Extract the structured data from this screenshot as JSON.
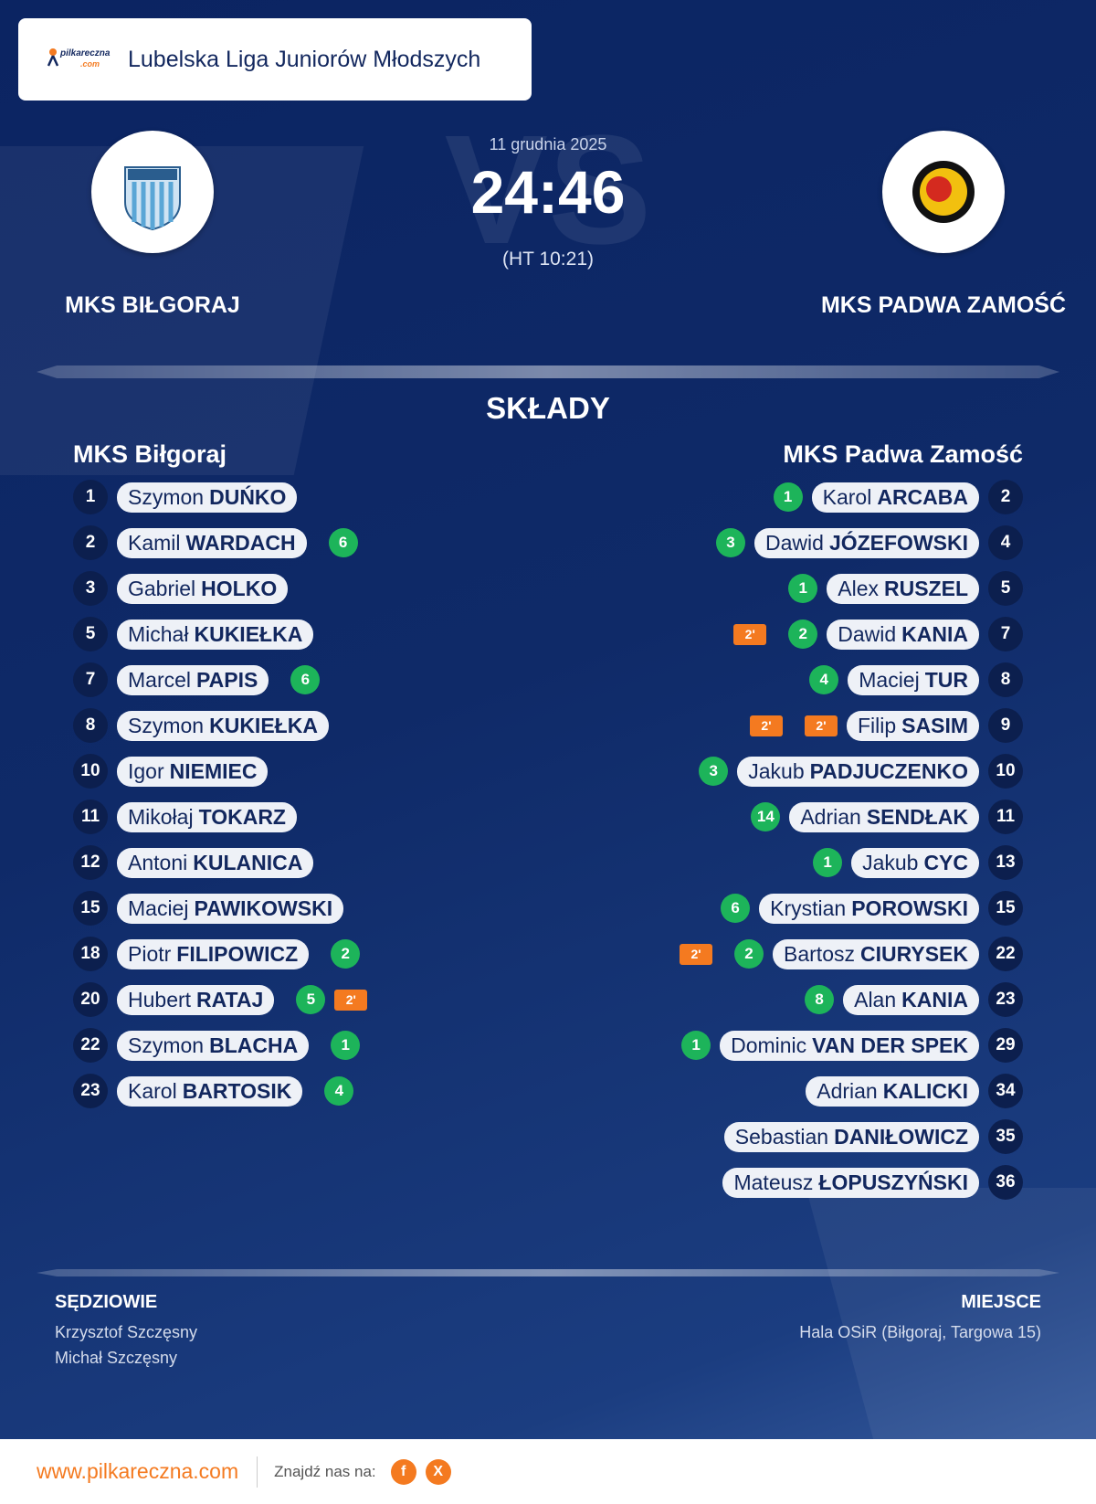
{
  "header": {
    "logo": "pilkareczna",
    "logo_sub": ".com",
    "league": "Lubelska Liga Juniorów Młodszych"
  },
  "match": {
    "watermark": "VS",
    "date": "11 grudnia 2025",
    "score": "24:46",
    "halftime": "(HT 10:21)",
    "home": "MKS BIŁGORAJ",
    "away": "MKS PADWA ZAMOŚĆ"
  },
  "lineups": {
    "title": "SKŁADY",
    "home": {
      "name": "MKS Biłgoraj",
      "players": [
        {
          "number": 1,
          "first": "Szymon",
          "last": "DUŃKO",
          "goals": null,
          "penalties": []
        },
        {
          "number": 2,
          "first": "Kamil",
          "last": "WARDACH",
          "goals": 6,
          "penalties": []
        },
        {
          "number": 3,
          "first": "Gabriel",
          "last": "HOLKO",
          "goals": null,
          "penalties": []
        },
        {
          "number": 5,
          "first": "Michał",
          "last": "KUKIEŁKA",
          "goals": null,
          "penalties": []
        },
        {
          "number": 7,
          "first": "Marcel",
          "last": "PAPIS",
          "goals": 6,
          "penalties": []
        },
        {
          "number": 8,
          "first": "Szymon",
          "last": "KUKIEŁKA",
          "goals": null,
          "penalties": []
        },
        {
          "number": 10,
          "first": "Igor",
          "last": "NIEMIEC",
          "goals": null,
          "penalties": []
        },
        {
          "number": 11,
          "first": "Mikołaj",
          "last": "TOKARZ",
          "goals": null,
          "penalties": []
        },
        {
          "number": 12,
          "first": "Antoni",
          "last": "KULANICA",
          "goals": null,
          "penalties": []
        },
        {
          "number": 15,
          "first": "Maciej",
          "last": "PAWIKOWSKI",
          "goals": null,
          "penalties": []
        },
        {
          "number": 18,
          "first": "Piotr",
          "last": "FILIPOWICZ",
          "goals": 2,
          "penalties": []
        },
        {
          "number": 20,
          "first": "Hubert",
          "last": "RATAJ",
          "goals": 5,
          "penalties": [
            "2'"
          ]
        },
        {
          "number": 22,
          "first": "Szymon",
          "last": "BLACHA",
          "goals": 1,
          "penalties": []
        },
        {
          "number": 23,
          "first": "Karol",
          "last": "BARTOSIK",
          "goals": 4,
          "penalties": []
        }
      ]
    },
    "away": {
      "name": "MKS Padwa Zamość",
      "players": [
        {
          "number": 2,
          "first": "Karol",
          "last": "ARCABA",
          "goals": 1,
          "penalties": []
        },
        {
          "number": 4,
          "first": "Dawid",
          "last": "JÓZEFOWSKI",
          "goals": 3,
          "penalties": []
        },
        {
          "number": 5,
          "first": "Alex",
          "last": "RUSZEL",
          "goals": 1,
          "penalties": []
        },
        {
          "number": 7,
          "first": "Dawid",
          "last": "KANIA",
          "goals": 2,
          "penalties": [
            "2'"
          ]
        },
        {
          "number": 8,
          "first": "Maciej",
          "last": "TUR",
          "goals": 4,
          "penalties": []
        },
        {
          "number": 9,
          "first": "Filip",
          "last": "SASIM",
          "goals": null,
          "penalties": [
            "2'",
            "2'"
          ]
        },
        {
          "number": 10,
          "first": "Jakub",
          "last": "PADJUCZENKO",
          "goals": 3,
          "penalties": []
        },
        {
          "number": 11,
          "first": "Adrian",
          "last": "SENDŁAK",
          "goals": 14,
          "penalties": []
        },
        {
          "number": 13,
          "first": "Jakub",
          "last": "CYC",
          "goals": 1,
          "penalties": []
        },
        {
          "number": 15,
          "first": "Krystian",
          "last": "POROWSKI",
          "goals": 6,
          "penalties": []
        },
        {
          "number": 22,
          "first": "Bartosz",
          "last": "CIURYSEK",
          "goals": 2,
          "penalties": [
            "2'"
          ]
        },
        {
          "number": 23,
          "first": "Alan",
          "last": "KANIA",
          "goals": 8,
          "penalties": []
        },
        {
          "number": 29,
          "first": "Dominic",
          "last": "VAN DER SPEK",
          "goals": 1,
          "penalties": []
        },
        {
          "number": 34,
          "first": "Adrian",
          "last": "KALICKI",
          "goals": null,
          "penalties": []
        },
        {
          "number": 35,
          "first": "Sebastian",
          "last": "DANIŁOWICZ",
          "goals": null,
          "penalties": []
        },
        {
          "number": 36,
          "first": "Mateusz",
          "last": "ŁOPUSZYŃSKI",
          "goals": null,
          "penalties": []
        }
      ]
    }
  },
  "officials": {
    "referees_label": "SĘDZIOWIE",
    "referees": [
      "Krzysztof Szczęsny",
      "Michał Szczęsny"
    ],
    "venue_label": "MIEJSCE",
    "venue": "Hala OSiR (Biłgoraj, Targowa 15)"
  },
  "footer": {
    "website": "www.pilkareczna.com",
    "follow": "Znajdź nas na:",
    "social": [
      "f",
      "X"
    ]
  }
}
